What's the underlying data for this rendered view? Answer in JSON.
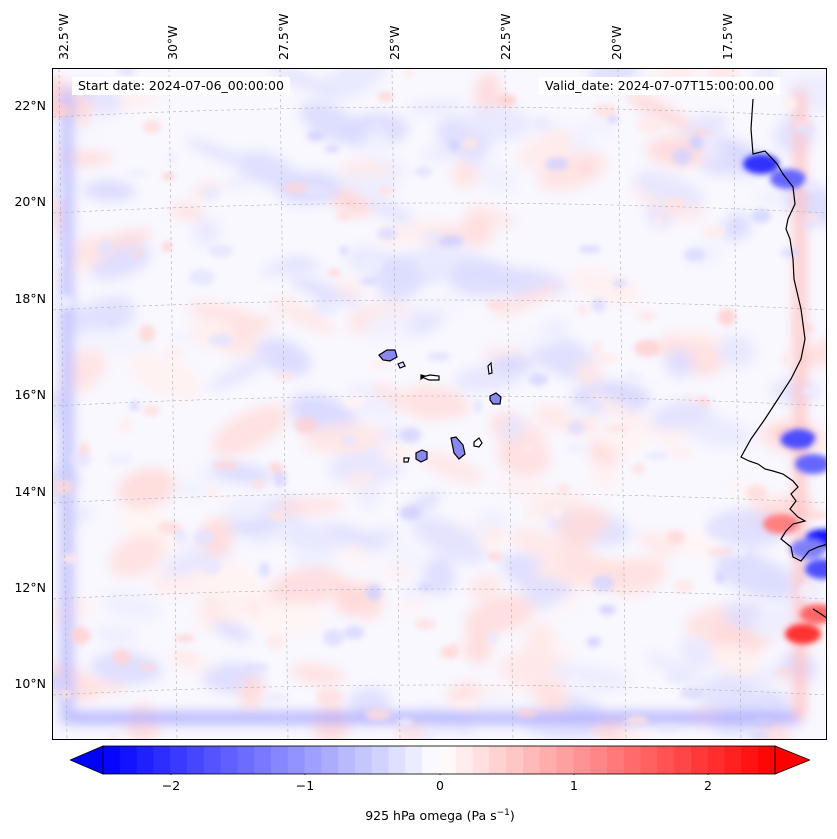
{
  "header": {
    "start_date": "Start date: 2024-07-06_00:00:00",
    "valid_date": "Valid_date: 2024-07-07T15:00:00.00"
  },
  "axes": {
    "longitude_labels": [
      "32.5°W",
      "30°W",
      "27.5°W",
      "25°W",
      "22.5°W",
      "20°W",
      "17.5°W"
    ],
    "latitude_labels": [
      "22°N",
      "20°N",
      "18°N",
      "16°N",
      "14°N",
      "12°N",
      "10°N"
    ]
  },
  "colorbar": {
    "ticks": [
      "−2",
      "−1",
      "0",
      "1",
      "2"
    ],
    "label": "925 hPa omega (Pa s",
    "label_sup": "−1",
    "label_end": ")",
    "colors": {
      "min": "#0000ff",
      "mid": "#ffffff",
      "max": "#ff0000"
    },
    "range": [
      -2.5,
      2.5
    ]
  },
  "map": {
    "projection": "lambert conformal",
    "gridlines": true,
    "features": [
      "coastline",
      "cape-verde-islands"
    ]
  }
}
